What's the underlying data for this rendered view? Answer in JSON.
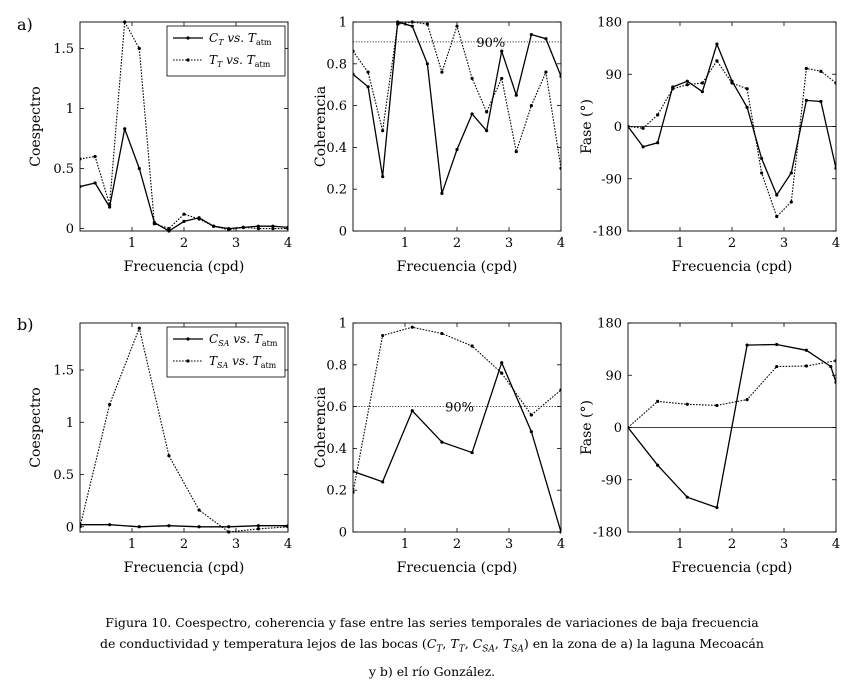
{
  "figure": {
    "panel_labels": [
      "a)",
      "b)"
    ],
    "chart_data": [
      {
        "id": "a_coespectro",
        "type": "line",
        "row": 0,
        "col": 0,
        "xlabel": "Frecuencia (cpd)",
        "ylabel": "Coespectro",
        "xlim": [
          0,
          4
        ],
        "ylim": [
          -0.02,
          1.72
        ],
        "xticks": [
          1,
          2,
          3,
          4
        ],
        "xtick_labels": [
          "1",
          "2",
          "3",
          "4"
        ],
        "yticks": [
          0,
          0.5,
          1,
          1.5
        ],
        "ytick_labels": [
          "0",
          "0.5",
          "1",
          "1.5"
        ],
        "legend": {
          "position": "top-right",
          "entries": [
            {
              "var": "C",
              "sub": "T",
              "vs": "vs.",
              "ref": "T",
              "refsub": "atm"
            },
            {
              "var": "T",
              "sub": "T",
              "vs": "vs.",
              "ref": "T",
              "refsub": "atm"
            }
          ]
        },
        "series": [
          {
            "name": "CT vs. Tatm",
            "style": "solid",
            "x": [
              0,
              0.29,
              0.57,
              0.86,
              1.14,
              1.43,
              1.71,
              2.0,
              2.29,
              2.57,
              2.86,
              3.14,
              3.43,
              3.71,
              4.0
            ],
            "y": [
              0.35,
              0.38,
              0.18,
              0.83,
              0.5,
              0.05,
              -0.02,
              0.06,
              0.09,
              0.02,
              0.0,
              0.01,
              0.02,
              0.02,
              0.01
            ]
          },
          {
            "name": "TT vs. Tatm",
            "style": "dotted",
            "x": [
              0,
              0.29,
              0.57,
              0.86,
              1.14,
              1.43,
              1.71,
              2.0,
              2.29,
              2.57,
              2.86,
              3.14,
              3.43,
              3.71,
              4.0
            ],
            "y": [
              0.58,
              0.6,
              0.2,
              1.72,
              1.5,
              0.04,
              0.0,
              0.12,
              0.08,
              0.02,
              -0.01,
              0.01,
              0.0,
              0.0,
              0.0
            ]
          }
        ]
      },
      {
        "id": "a_coherencia",
        "type": "line",
        "row": 0,
        "col": 1,
        "xlabel": "Frecuencia (cpd)",
        "ylabel": "Coherencia",
        "xlim": [
          0,
          4
        ],
        "ylim": [
          0,
          1
        ],
        "xticks": [
          1,
          2,
          3,
          4
        ],
        "xtick_labels": [
          "1",
          "2",
          "3",
          "4"
        ],
        "yticks": [
          0,
          0.2,
          0.4,
          0.6,
          0.8,
          1
        ],
        "ytick_labels": [
          "0",
          "0.2",
          "0.4",
          "0.6",
          "0.8",
          "1"
        ],
        "threshold": {
          "value": 0.905,
          "label": "90%",
          "label_x": 2.65
        },
        "series": [
          {
            "name": "CT vs. Tatm",
            "style": "solid",
            "x": [
              0,
              0.29,
              0.57,
              0.86,
              1.14,
              1.43,
              1.71,
              2.0,
              2.29,
              2.57,
              2.86,
              3.14,
              3.43,
              3.71,
              4.0
            ],
            "y": [
              0.75,
              0.69,
              0.26,
              1.0,
              0.98,
              0.8,
              0.18,
              0.39,
              0.56,
              0.48,
              0.86,
              0.65,
              0.94,
              0.92,
              0.74
            ]
          },
          {
            "name": "TT vs. Tatm",
            "style": "dotted",
            "x": [
              0,
              0.29,
              0.57,
              0.86,
              1.14,
              1.43,
              1.71,
              2.0,
              2.29,
              2.57,
              2.86,
              3.14,
              3.43,
              3.71,
              4.0
            ],
            "y": [
              0.86,
              0.76,
              0.48,
              0.99,
              1.0,
              0.99,
              0.76,
              0.98,
              0.73,
              0.57,
              0.73,
              0.38,
              0.6,
              0.76,
              0.3
            ]
          }
        ]
      },
      {
        "id": "a_fase",
        "type": "line",
        "row": 0,
        "col": 2,
        "xlabel": "Frecuencia (cpd)",
        "ylabel": "Fase (°)",
        "xlim": [
          0,
          4
        ],
        "ylim": [
          -180,
          180
        ],
        "xticks": [
          1,
          2,
          3,
          4
        ],
        "xtick_labels": [
          "1",
          "2",
          "3",
          "4"
        ],
        "yticks": [
          -180,
          -90,
          0,
          90,
          180
        ],
        "ytick_labels": [
          "-180",
          "-90",
          "0",
          "90",
          "180"
        ],
        "zero_line": true,
        "series": [
          {
            "name": "CT vs. Tatm",
            "style": "solid",
            "x": [
              0,
              0.29,
              0.57,
              0.86,
              1.14,
              1.43,
              1.71,
              2.0,
              2.29,
              2.57,
              2.86,
              3.14,
              3.43,
              3.71,
              4.0
            ],
            "y": [
              0,
              -35,
              -28,
              68,
              78,
              60,
              142,
              78,
              33,
              -55,
              -118,
              -80,
              45,
              43,
              -72
            ]
          },
          {
            "name": "TT vs. Tatm",
            "style": "dotted",
            "x": [
              0,
              0.29,
              0.57,
              0.86,
              1.14,
              1.43,
              1.71,
              2.0,
              2.29,
              2.57,
              2.86,
              3.14,
              3.43,
              3.71,
              4.0
            ],
            "y": [
              0,
              -3,
              20,
              65,
              72,
              75,
              113,
              75,
              65,
              -80,
              -155,
              -130,
              100,
              95,
              75
            ]
          }
        ]
      },
      {
        "id": "b_coespectro",
        "type": "line",
        "row": 1,
        "col": 0,
        "xlabel": "Frecuencia (cpd)",
        "ylabel": "Coespectro",
        "xlim": [
          0,
          4
        ],
        "ylim": [
          -0.05,
          1.95
        ],
        "xticks": [
          1,
          2,
          3,
          4
        ],
        "xtick_labels": [
          "1",
          "2",
          "3",
          "4"
        ],
        "yticks": [
          0,
          0.5,
          1,
          1.5
        ],
        "ytick_labels": [
          "0",
          "0.5",
          "1",
          "1.5"
        ],
        "legend": {
          "position": "top-right",
          "entries": [
            {
              "var": "C",
              "sub": "SA",
              "vs": "vs.",
              "ref": "T",
              "refsub": "atm"
            },
            {
              "var": "T",
              "sub": "SA",
              "vs": "vs.",
              "ref": "T",
              "refsub": "atm"
            }
          ]
        },
        "series": [
          {
            "name": "CSA vs. Tatm",
            "style": "solid",
            "x": [
              0,
              0.57,
              1.14,
              1.71,
              2.29,
              2.86,
              3.43,
              4.0
            ],
            "y": [
              0.02,
              0.02,
              0.0,
              0.01,
              0.0,
              0.0,
              0.01,
              0.01
            ]
          },
          {
            "name": "TSA vs. Tatm",
            "style": "dotted",
            "x": [
              0,
              0.57,
              1.14,
              1.71,
              2.29,
              2.86,
              3.43,
              4.0
            ],
            "y": [
              0.0,
              1.17,
              1.9,
              0.68,
              0.16,
              -0.05,
              -0.02,
              0.0
            ]
          }
        ]
      },
      {
        "id": "b_coherencia",
        "type": "line",
        "row": 1,
        "col": 1,
        "xlabel": "Frecuencia (cpd)",
        "ylabel": "Coherencia",
        "xlim": [
          0,
          4
        ],
        "ylim": [
          0,
          1
        ],
        "xticks": [
          1,
          2,
          3,
          4
        ],
        "xtick_labels": [
          "1",
          "2",
          "3",
          "4"
        ],
        "yticks": [
          0,
          0.2,
          0.4,
          0.6,
          0.8,
          1
        ],
        "ytick_labels": [
          "0",
          "0.2",
          "0.4",
          "0.6",
          "0.8",
          "1"
        ],
        "threshold": {
          "value": 0.6,
          "label": "90%",
          "label_x": 2.05
        },
        "series": [
          {
            "name": "CSA vs. Tatm",
            "style": "solid",
            "x": [
              0,
              0.57,
              1.14,
              1.71,
              2.29,
              2.86,
              3.43,
              4.0
            ],
            "y": [
              0.29,
              0.24,
              0.58,
              0.43,
              0.38,
              0.81,
              0.48,
              0.0
            ]
          },
          {
            "name": "TSA vs. Tatm",
            "style": "dotted",
            "x": [
              0,
              0.57,
              1.14,
              1.71,
              2.29,
              2.86,
              3.43,
              4.0
            ],
            "y": [
              0.19,
              0.94,
              0.98,
              0.95,
              0.89,
              0.76,
              0.56,
              0.68
            ]
          }
        ]
      },
      {
        "id": "b_fase",
        "type": "line",
        "row": 1,
        "col": 2,
        "xlabel": "Frecuencia (cpd)",
        "ylabel": "Fase (°)",
        "xlim": [
          0,
          4
        ],
        "ylim": [
          -180,
          180
        ],
        "xticks": [
          1,
          2,
          3,
          4
        ],
        "xtick_labels": [
          "1",
          "2",
          "3",
          "4"
        ],
        "yticks": [
          -180,
          -90,
          0,
          90,
          180
        ],
        "ytick_labels": [
          "-180",
          "-90",
          "0",
          "90",
          "180"
        ],
        "zero_line": true,
        "series": [
          {
            "name": "CSA vs. Tatm",
            "style": "solid",
            "x": [
              0,
              0.57,
              1.14,
              1.71,
              2.29,
              2.86,
              3.43,
              3.9,
              4.0
            ],
            "y": [
              0,
              -65,
              -120,
              -138,
              142,
              143,
              133,
              105,
              78
            ]
          },
          {
            "name": "TSA vs. Tatm",
            "style": "dotted",
            "x": [
              0,
              0.57,
              1.14,
              1.71,
              2.29,
              2.86,
              3.43,
              4.0
            ],
            "y": [
              0,
              45,
              40,
              38,
              48,
              105,
              106,
              115
            ]
          }
        ]
      }
    ]
  },
  "caption": {
    "line1": "Figura 10. Coespectro, coherencia y fase entre las series temporales de variaciones de baja frecuencia",
    "line2_pre": "de conductividad y temperatura lejos de las bocas (",
    "line2_vars": [
      {
        "v": "C",
        "s": "T"
      },
      {
        "v": "T",
        "s": "T"
      },
      {
        "v": "C",
        "s": "SA"
      },
      {
        "v": "T",
        "s": "SA"
      }
    ],
    "line2_post": ") en la zona de a) la laguna Mecoacán",
    "line3": "y b) el río González."
  }
}
